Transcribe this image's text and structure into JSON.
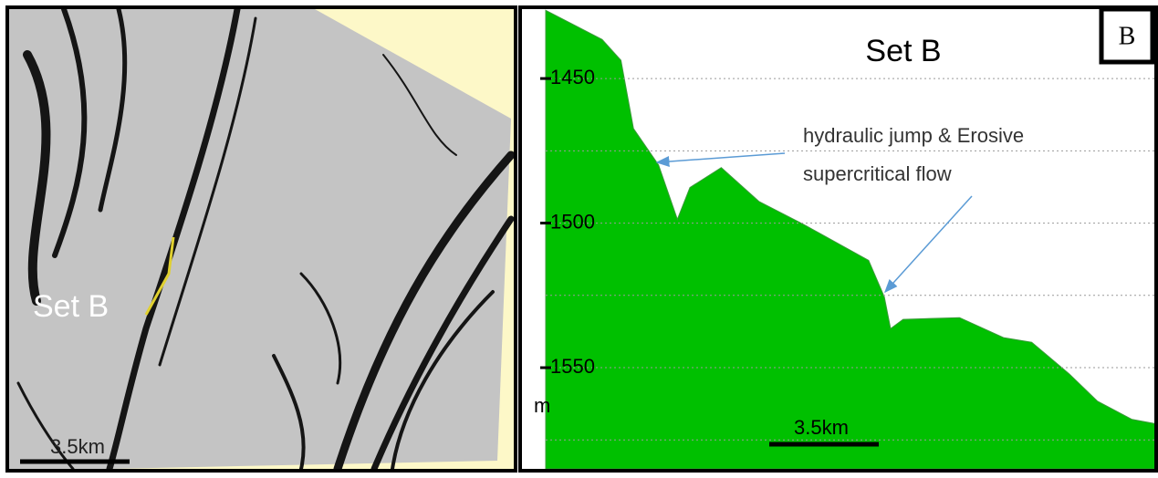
{
  "left_panel": {
    "label": "Set B",
    "scale_bar": "3.5km"
  },
  "chart_data": {
    "type": "area",
    "title": "Set B",
    "panel_label": "B",
    "y_label": "m",
    "annotation": [
      "hydraulic jump & Erosive",
      "supercritical flow"
    ],
    "scale_bar": "3.5km",
    "color": "#00c000",
    "grid": true,
    "y_inverted": true,
    "x": [
      0,
      1.8,
      2.4,
      2.8,
      3.6,
      4.2,
      4.6,
      5.6,
      6.8,
      8.2,
      10.3,
      10.8,
      11.0,
      11.4,
      13.2,
      14.6,
      15.5,
      16.7,
      17.6,
      18.7,
      19.5
    ],
    "values": [
      1426.4,
      1436.5,
      1443.7,
      1467.3,
      1479.9,
      1498.7,
      1487.7,
      1480.8,
      1492.5,
      1500.3,
      1512.9,
      1525.5,
      1536.5,
      1533.3,
      1532.7,
      1539.6,
      1541.2,
      1552.2,
      1561.6,
      1567.9,
      1569.5
    ],
    "xlim": [
      0,
      19.5
    ],
    "ylim": [
      1426,
      1585
    ],
    "yticks": [
      1450,
      1500,
      1550
    ],
    "minor_yticks": [
      1475,
      1525,
      1575
    ]
  }
}
